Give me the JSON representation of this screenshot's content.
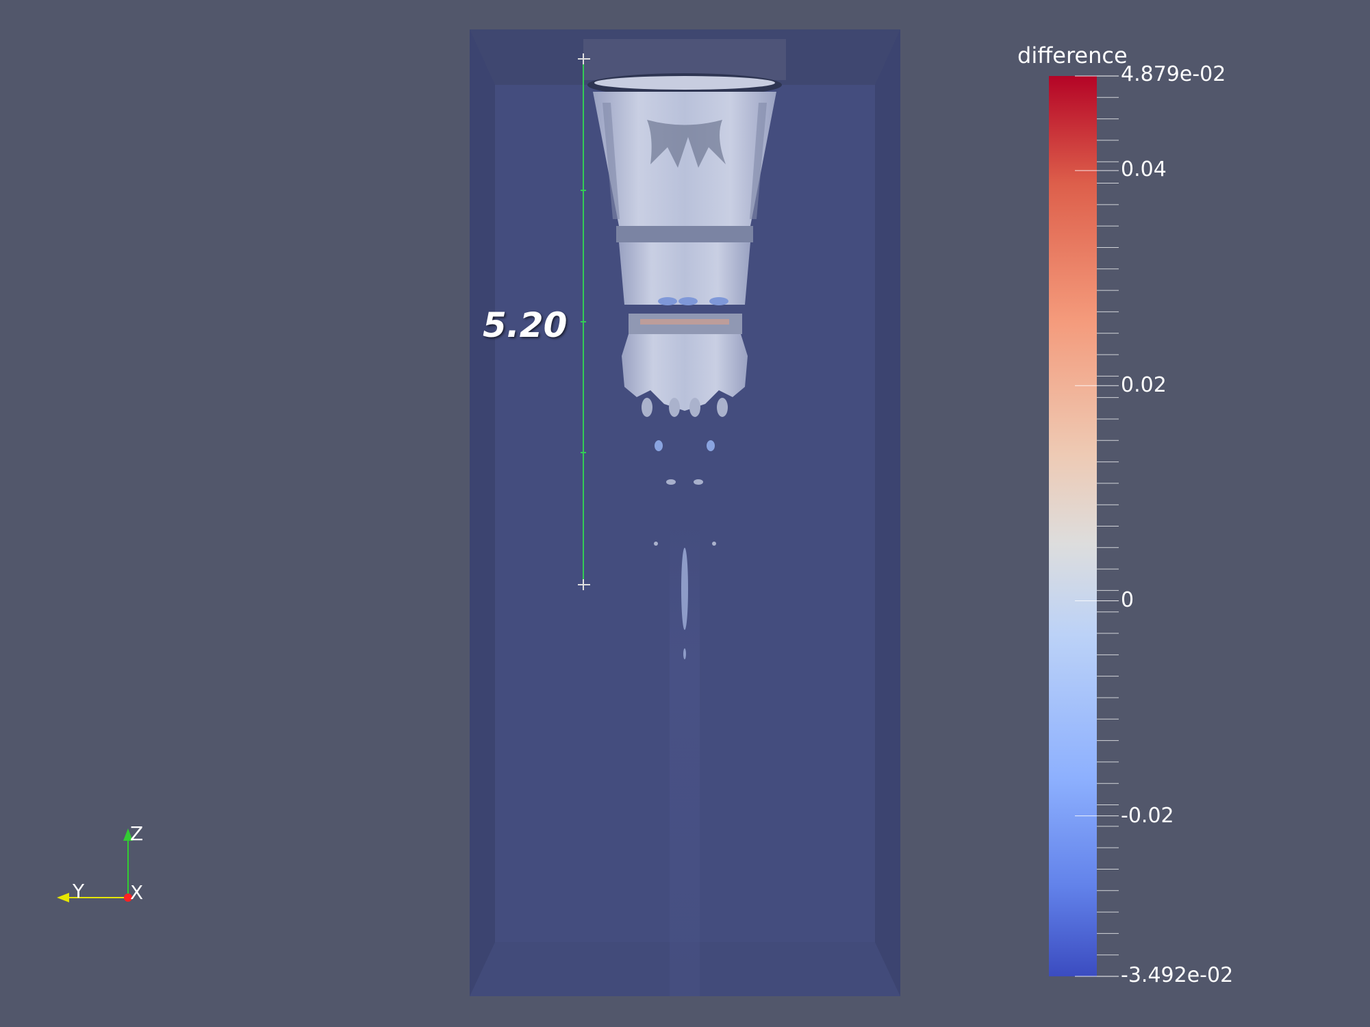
{
  "ruler": {
    "value": "5.20"
  },
  "colorbar": {
    "title": "difference",
    "labels": [
      "4.879e-02",
      "0.04",
      "0.02",
      "0",
      "-0.02",
      "-3.492e-02"
    ],
    "label_values": [
      0.04879,
      0.04,
      0.02,
      0,
      -0.02,
      -0.03492
    ],
    "range": [
      -0.03492,
      0.04879
    ],
    "colormap": {
      "top": "#b40426",
      "mid": "#dddddd",
      "bottom": "#3b4cc0"
    }
  },
  "axes_triad": {
    "z_label": "Z",
    "y_label": "Y",
    "x_label": "X",
    "colors": {
      "z": "#33cc33",
      "y": "#e6e600",
      "x": "#ff2222"
    }
  },
  "colors": {
    "background": "#52576b",
    "box": "#40497a",
    "ruler": "#33cc55"
  }
}
